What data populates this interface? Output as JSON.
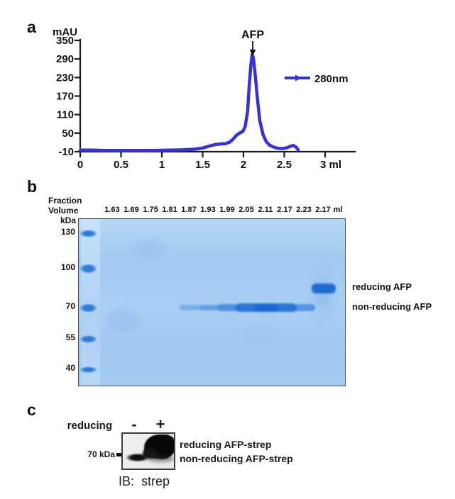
{
  "panel_a": {
    "label": "a",
    "y_axis_title": "mAU",
    "y_tick_labels": [
      "350",
      "290",
      "230",
      "170",
      "110",
      "50",
      "-10"
    ],
    "x_tick_labels": [
      "0",
      "0.5",
      "1",
      "1.5",
      "2",
      "2.5",
      "3 ml"
    ],
    "peak_label": "AFP",
    "legend_label": "280nm",
    "curve_color": "#3831d8"
  },
  "chart_data": {
    "type": "line",
    "title": "",
    "xlabel": "ml",
    "ylabel": "mAU",
    "xlim": [
      0,
      3.2
    ],
    "ylim": [
      -10,
      350
    ],
    "x_ticks": [
      0,
      0.5,
      1,
      1.5,
      2,
      2.5,
      3
    ],
    "y_ticks": [
      350,
      290,
      230,
      170,
      110,
      50,
      -10
    ],
    "grid": false,
    "legend_position": "right",
    "series": [
      {
        "name": "280nm",
        "color": "#3831d8",
        "x": [
          0,
          0.15,
          0.3,
          0.5,
          0.7,
          0.9,
          1.1,
          1.25,
          1.4,
          1.5,
          1.58,
          1.65,
          1.72,
          1.78,
          1.83,
          1.87,
          1.91,
          1.95,
          1.99,
          2.02,
          2.05,
          2.07,
          2.09,
          2.105,
          2.12,
          2.14,
          2.17,
          2.2,
          2.24,
          2.28,
          2.32,
          2.37,
          2.42,
          2.47,
          2.52,
          2.57,
          2.61,
          2.64,
          2.67
        ],
        "y": [
          -5,
          -5,
          -6,
          -6,
          -6,
          -6,
          -5,
          -4,
          -2,
          2,
          8,
          13,
          15,
          16,
          21,
          30,
          42,
          50,
          55,
          70,
          120,
          200,
          270,
          303,
          295,
          250,
          165,
          90,
          45,
          22,
          11,
          5,
          1,
          0,
          2,
          7,
          10,
          6,
          -4
        ]
      }
    ],
    "annotations": [
      {
        "text": "AFP",
        "x": 2.11,
        "y": 330
      }
    ]
  },
  "panel_b": {
    "label": "b",
    "header_line1": "Fraction",
    "header_line2": "Volume",
    "fraction_labels": [
      "1.63",
      "1.69",
      "1.75",
      "1.81",
      "1.87",
      "1.93",
      "1.99",
      "2.05",
      "2.11",
      "2.17",
      "2.23",
      "2.17"
    ],
    "unit_label": "ml",
    "kda_header": "kDa",
    "ladder_labels": [
      "130",
      "100",
      "70",
      "55",
      "40"
    ],
    "ladder_kda_values": [
      130,
      100,
      70,
      55,
      40
    ],
    "right_labels": {
      "reducing": "reducing AFP",
      "non_reducing": "non-reducing AFP"
    },
    "gel_background": "#a6cdf2",
    "band_color": "#1a69d2",
    "non_reducing_bands": [
      {
        "fraction": "1.87",
        "lane": 4,
        "intensity": 0.18
      },
      {
        "fraction": "1.93",
        "lane": 5,
        "intensity": 0.35
      },
      {
        "fraction": "1.99",
        "lane": 6,
        "intensity": 0.55
      },
      {
        "fraction": "2.05",
        "lane": 7,
        "intensity": 0.85
      },
      {
        "fraction": "2.11",
        "lane": 8,
        "intensity": 1.0
      },
      {
        "fraction": "2.17",
        "lane": 9,
        "intensity": 0.85
      },
      {
        "fraction": "2.23",
        "lane": 10,
        "intensity": 0.5
      }
    ],
    "reducing_band": {
      "fraction": "2.17",
      "lane": 11,
      "intensity": 0.95
    }
  },
  "panel_c": {
    "label": "c",
    "condition_label": "reducing",
    "lane_labels": {
      "minus": "-",
      "plus": "+"
    },
    "marker_label": "70 kDa",
    "right_labels": {
      "reducing": "reducing AFP-strep",
      "non_reducing": "non-reducing AFP-strep"
    },
    "caption": "IB:  strep"
  }
}
